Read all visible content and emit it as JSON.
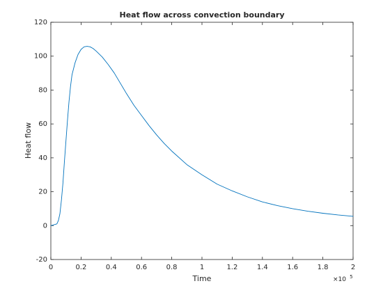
{
  "figure": {
    "title": "Heat flow across convection boundary",
    "xlabel": "Time",
    "ylabel": "Heat flow",
    "x_exponent_base": "×10",
    "x_exponent_power": "5"
  },
  "chart_data": {
    "type": "line",
    "title": "Heat flow across convection boundary",
    "xlabel": "Time",
    "ylabel": "Heat flow",
    "x_scale_note": "×10^5",
    "xlim": [
      0,
      200000
    ],
    "ylim": [
      -20,
      120
    ],
    "grid": false,
    "x_ticks": [
      0,
      20000,
      40000,
      60000,
      80000,
      100000,
      120000,
      140000,
      160000,
      180000,
      200000
    ],
    "x_tick_labels": [
      "0",
      "0.2",
      "0.4",
      "0.6",
      "0.8",
      "1",
      "1.2",
      "1.4",
      "1.6",
      "1.8",
      "2"
    ],
    "y_ticks": [
      -20,
      0,
      20,
      40,
      60,
      80,
      100,
      120
    ],
    "y_tick_labels": [
      "-20",
      "0",
      "20",
      "40",
      "60",
      "80",
      "100",
      "120"
    ],
    "series": [
      {
        "color": "#0072bd",
        "x": [
          0,
          2000,
          4000,
          5000,
          6000,
          7000,
          8000,
          9000,
          10000,
          11000,
          12000,
          13000,
          14000,
          16000,
          18000,
          20000,
          22000,
          24000,
          26000,
          28000,
          30000,
          34000,
          38000,
          42000,
          46000,
          50000,
          55000,
          60000,
          65000,
          70000,
          75000,
          80000,
          90000,
          100000,
          110000,
          120000,
          130000,
          140000,
          150000,
          160000,
          170000,
          180000,
          190000,
          200000
        ],
        "y": [
          0,
          0.5,
          1,
          3,
          7,
          15,
          25,
          38,
          50,
          62,
          73,
          82,
          89,
          96,
          101,
          104,
          105.5,
          105.8,
          105.5,
          104.5,
          103,
          99.5,
          95,
          90,
          84,
          78,
          71,
          65,
          59,
          53.5,
          48.5,
          44,
          36,
          30,
          24.5,
          20.5,
          17,
          14,
          11.8,
          10,
          8.5,
          7.3,
          6.3,
          5.5
        ]
      }
    ]
  }
}
